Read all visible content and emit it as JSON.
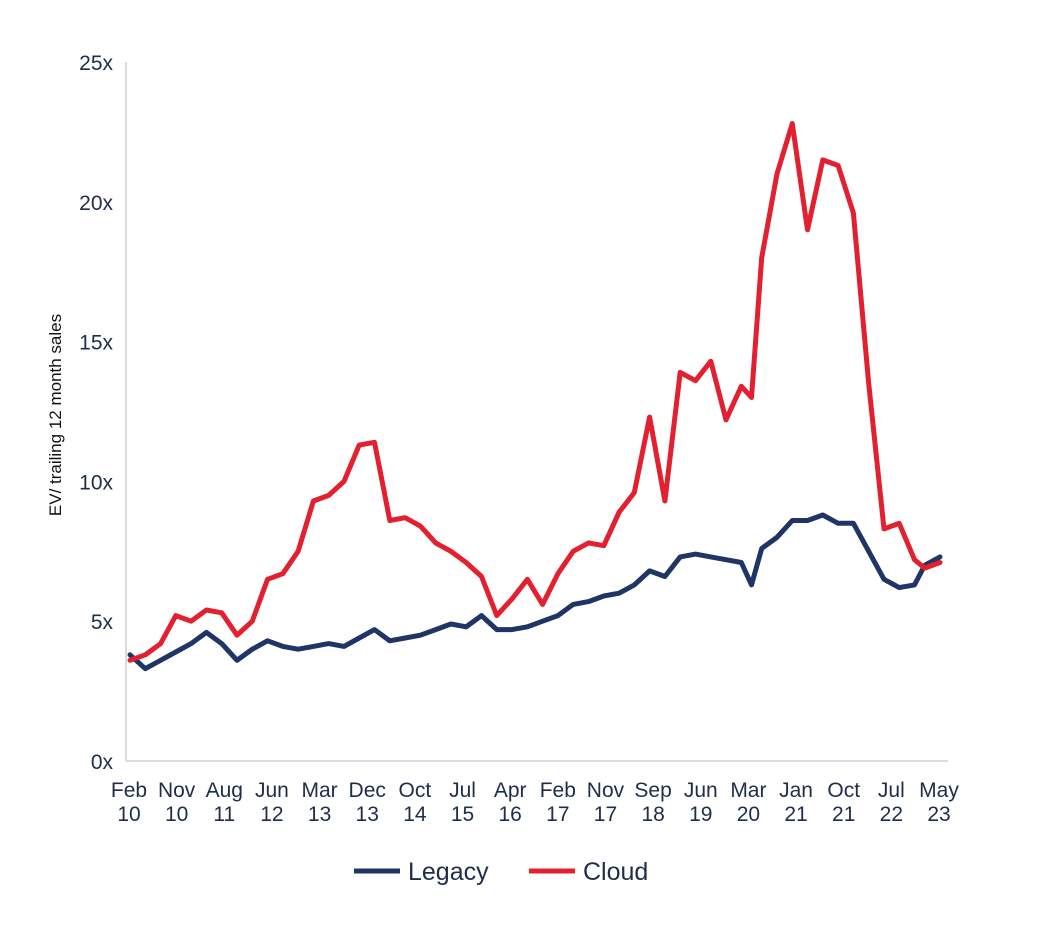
{
  "chart_data": {
    "type": "line",
    "title": "",
    "ylabel": "EV/ trailing 12 month sales",
    "xlabel": "",
    "ylim": [
      0,
      25
    ],
    "y_ticks": [
      {
        "value": 0,
        "label": "0x"
      },
      {
        "value": 5,
        "label": "5x"
      },
      {
        "value": 10,
        "label": "10x"
      },
      {
        "value": 15,
        "label": "15x"
      },
      {
        "value": 20,
        "label": "20x"
      },
      {
        "value": 25,
        "label": "25x"
      }
    ],
    "x_ticks": [
      {
        "month": "Feb",
        "year": "10"
      },
      {
        "month": "Nov",
        "year": "10"
      },
      {
        "month": "Aug",
        "year": "11"
      },
      {
        "month": "Jun",
        "year": "12"
      },
      {
        "month": "Mar",
        "year": "13"
      },
      {
        "month": "Dec",
        "year": "13"
      },
      {
        "month": "Oct",
        "year": "14"
      },
      {
        "month": "Jul",
        "year": "15"
      },
      {
        "month": "Apr",
        "year": "16"
      },
      {
        "month": "Feb",
        "year": "17"
      },
      {
        "month": "Nov",
        "year": "17"
      },
      {
        "month": "Sep",
        "year": "18"
      },
      {
        "month": "Jun",
        "year": "19"
      },
      {
        "month": "Mar",
        "year": "20"
      },
      {
        "month": "Jan",
        "year": "21"
      },
      {
        "month": "Oct",
        "year": "21"
      },
      {
        "month": "Jul",
        "year": "22"
      },
      {
        "month": "May",
        "year": "23"
      }
    ],
    "grid": false,
    "legend_position": "bottom-center",
    "series": [
      {
        "name": "Legacy",
        "color": "#1f3566",
        "points": [
          [
            "2010-02",
            3.8
          ],
          [
            "2010-05",
            3.3
          ],
          [
            "2010-08",
            3.6
          ],
          [
            "2010-11",
            3.9
          ],
          [
            "2011-02",
            4.2
          ],
          [
            "2011-05",
            4.6
          ],
          [
            "2011-08",
            4.2
          ],
          [
            "2011-11",
            3.6
          ],
          [
            "2012-02",
            4.0
          ],
          [
            "2012-05",
            4.3
          ],
          [
            "2012-08",
            4.1
          ],
          [
            "2012-11",
            4.0
          ],
          [
            "2013-02",
            4.1
          ],
          [
            "2013-05",
            4.2
          ],
          [
            "2013-08",
            4.1
          ],
          [
            "2013-11",
            4.4
          ],
          [
            "2014-02",
            4.7
          ],
          [
            "2014-05",
            4.3
          ],
          [
            "2014-08",
            4.4
          ],
          [
            "2014-11",
            4.5
          ],
          [
            "2015-02",
            4.7
          ],
          [
            "2015-05",
            4.9
          ],
          [
            "2015-08",
            4.8
          ],
          [
            "2015-11",
            5.2
          ],
          [
            "2016-02",
            4.7
          ],
          [
            "2016-05",
            4.7
          ],
          [
            "2016-08",
            4.8
          ],
          [
            "2016-11",
            5.0
          ],
          [
            "2017-02",
            5.2
          ],
          [
            "2017-05",
            5.6
          ],
          [
            "2017-08",
            5.7
          ],
          [
            "2017-11",
            5.9
          ],
          [
            "2018-02",
            6.0
          ],
          [
            "2018-05",
            6.3
          ],
          [
            "2018-08",
            6.8
          ],
          [
            "2018-11",
            6.6
          ],
          [
            "2019-02",
            7.3
          ],
          [
            "2019-05",
            7.4
          ],
          [
            "2019-08",
            7.3
          ],
          [
            "2019-11",
            7.2
          ],
          [
            "2020-02",
            7.1
          ],
          [
            "2020-04",
            6.3
          ],
          [
            "2020-06",
            7.6
          ],
          [
            "2020-09",
            8.0
          ],
          [
            "2020-12",
            8.6
          ],
          [
            "2021-03",
            8.6
          ],
          [
            "2021-06",
            8.8
          ],
          [
            "2021-09",
            8.5
          ],
          [
            "2021-12",
            8.5
          ],
          [
            "2022-03",
            7.5
          ],
          [
            "2022-06",
            6.5
          ],
          [
            "2022-09",
            6.2
          ],
          [
            "2022-12",
            6.3
          ],
          [
            "2023-02",
            7.0
          ],
          [
            "2023-05",
            7.3
          ]
        ]
      },
      {
        "name": "Cloud",
        "color": "#e3202f",
        "points": [
          [
            "2010-02",
            3.6
          ],
          [
            "2010-05",
            3.8
          ],
          [
            "2010-08",
            4.2
          ],
          [
            "2010-11",
            5.2
          ],
          [
            "2011-02",
            5.0
          ],
          [
            "2011-05",
            5.4
          ],
          [
            "2011-08",
            5.3
          ],
          [
            "2011-11",
            4.5
          ],
          [
            "2012-02",
            5.0
          ],
          [
            "2012-05",
            6.5
          ],
          [
            "2012-08",
            6.7
          ],
          [
            "2012-11",
            7.5
          ],
          [
            "2013-02",
            9.3
          ],
          [
            "2013-05",
            9.5
          ],
          [
            "2013-08",
            10.0
          ],
          [
            "2013-11",
            11.3
          ],
          [
            "2014-02",
            11.4
          ],
          [
            "2014-05",
            8.6
          ],
          [
            "2014-08",
            8.7
          ],
          [
            "2014-11",
            8.4
          ],
          [
            "2015-02",
            7.8
          ],
          [
            "2015-05",
            7.5
          ],
          [
            "2015-08",
            7.1
          ],
          [
            "2015-11",
            6.6
          ],
          [
            "2016-02",
            5.2
          ],
          [
            "2016-05",
            5.8
          ],
          [
            "2016-08",
            6.5
          ],
          [
            "2016-11",
            5.6
          ],
          [
            "2017-02",
            6.7
          ],
          [
            "2017-05",
            7.5
          ],
          [
            "2017-08",
            7.8
          ],
          [
            "2017-11",
            7.7
          ],
          [
            "2018-02",
            8.9
          ],
          [
            "2018-05",
            9.6
          ],
          [
            "2018-08",
            12.3
          ],
          [
            "2018-11",
            9.3
          ],
          [
            "2019-02",
            13.9
          ],
          [
            "2019-05",
            13.6
          ],
          [
            "2019-08",
            14.3
          ],
          [
            "2019-11",
            12.2
          ],
          [
            "2020-02",
            13.4
          ],
          [
            "2020-04",
            13.0
          ],
          [
            "2020-06",
            18.0
          ],
          [
            "2020-09",
            21.0
          ],
          [
            "2020-12",
            22.8
          ],
          [
            "2021-03",
            19.0
          ],
          [
            "2021-06",
            21.5
          ],
          [
            "2021-09",
            21.3
          ],
          [
            "2021-12",
            19.6
          ],
          [
            "2022-03",
            13.5
          ],
          [
            "2022-06",
            8.3
          ],
          [
            "2022-09",
            8.5
          ],
          [
            "2022-12",
            7.2
          ],
          [
            "2023-02",
            6.9
          ],
          [
            "2023-05",
            7.1
          ]
        ]
      }
    ]
  }
}
